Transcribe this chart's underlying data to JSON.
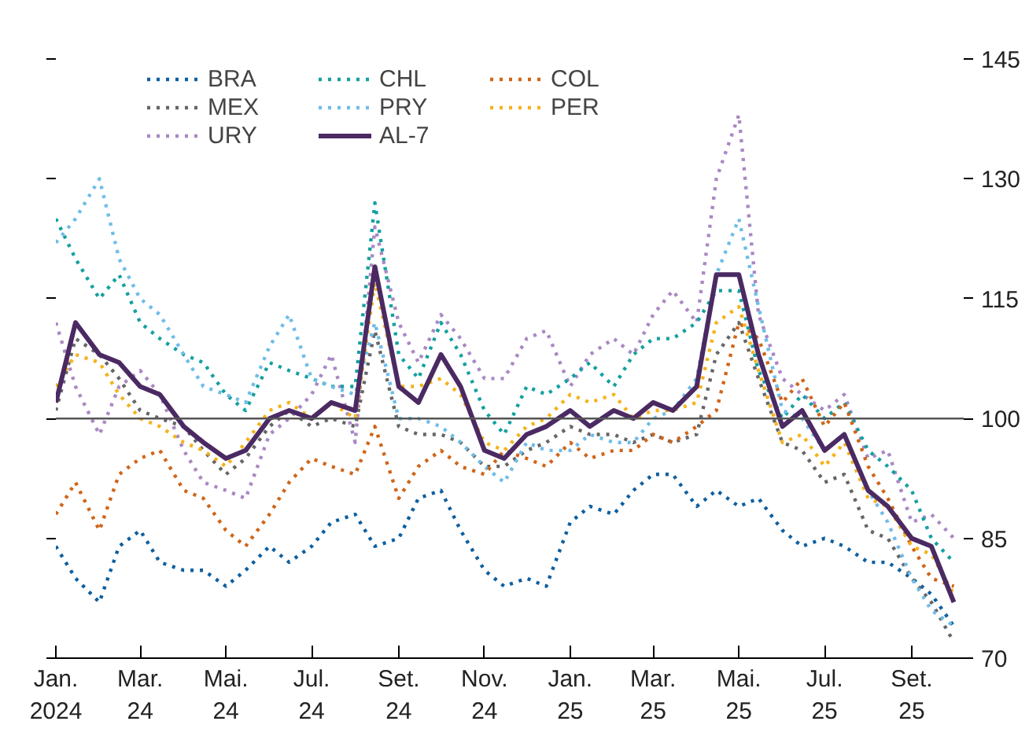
{
  "chart_data": {
    "type": "line",
    "x": [
      "2024-01-01",
      "2024-01-15",
      "2024-02-01",
      "2024-02-15",
      "2024-03-01",
      "2024-03-15",
      "2024-04-01",
      "2024-04-15",
      "2024-05-01",
      "2024-05-15",
      "2024-06-01",
      "2024-06-15",
      "2024-07-01",
      "2024-07-15",
      "2024-08-01",
      "2024-08-15",
      "2024-09-01",
      "2024-09-15",
      "2024-10-01",
      "2024-10-15",
      "2024-11-01",
      "2024-11-15",
      "2024-12-01",
      "2024-12-15",
      "2025-01-01",
      "2025-01-15",
      "2025-02-01",
      "2025-02-15",
      "2025-03-01",
      "2025-03-15",
      "2025-04-01",
      "2025-04-15",
      "2025-05-01",
      "2025-05-15",
      "2025-06-01",
      "2025-06-15",
      "2025-07-01",
      "2025-07-15",
      "2025-08-01",
      "2025-08-15",
      "2025-09-01",
      "2025-09-15",
      "2025-10-01"
    ],
    "series": [
      {
        "name": "BRA",
        "color": "#0d5fa0",
        "line_style": "dotted",
        "values": [
          84,
          80,
          77,
          84,
          86,
          82,
          81,
          81,
          79,
          81,
          84,
          82,
          84,
          87,
          88,
          84,
          85,
          90,
          91,
          86,
          81,
          79,
          80,
          79,
          87,
          89,
          88,
          91,
          93,
          93,
          89,
          91,
          89,
          90,
          86,
          84,
          85,
          84,
          82,
          82,
          80,
          78,
          74
        ]
      },
      {
        "name": "MEX",
        "color": "#666666",
        "line_style": "dotted",
        "values": [
          101,
          110,
          108,
          105,
          101,
          100,
          99,
          96,
          93,
          95,
          99,
          101,
          99,
          100,
          99,
          111,
          99,
          98,
          98,
          97,
          94,
          94,
          96,
          97,
          99,
          98,
          98,
          97,
          98,
          97,
          98,
          108,
          112,
          105,
          97,
          96,
          92,
          93,
          86,
          85,
          80,
          77,
          72
        ]
      },
      {
        "name": "URY",
        "color": "#a988c4",
        "line_style": "dotted",
        "values": [
          112,
          104,
          98,
          104,
          106,
          103,
          96,
          92,
          91,
          90,
          98,
          100,
          103,
          108,
          97,
          124,
          112,
          107,
          113,
          110,
          105,
          105,
          110,
          111,
          104,
          108,
          110,
          108,
          113,
          116,
          112,
          130,
          138,
          113,
          105,
          103,
          101,
          103,
          95,
          96,
          87,
          88,
          85
        ]
      },
      {
        "name": "CHL",
        "color": "#14a0a0",
        "line_style": "dotted",
        "values": [
          125,
          120,
          115,
          118,
          112,
          110,
          108,
          107,
          103,
          101,
          107,
          106,
          105,
          104,
          104,
          127,
          108,
          105,
          112,
          108,
          101,
          98,
          104,
          103,
          105,
          107,
          104,
          108,
          110,
          110,
          112,
          116,
          116,
          106,
          100,
          103,
          100,
          102,
          96,
          94,
          91,
          85,
          82
        ]
      },
      {
        "name": "PRY",
        "color": "#6fbde8",
        "line_style": "dotted",
        "values": [
          122,
          125,
          130,
          120,
          115,
          113,
          108,
          104,
          103,
          102,
          109,
          113,
          105,
          104,
          103,
          112,
          100,
          100,
          99,
          97,
          94,
          92,
          97,
          96,
          96,
          98,
          97,
          97,
          100,
          101,
          105,
          118,
          125,
          114,
          101,
          100,
          96,
          98,
          91,
          87,
          80,
          76,
          74
        ]
      },
      {
        "name": "AL-7",
        "color": "#4b2a63",
        "line_style": "solid",
        "values": [
          102,
          112,
          108,
          107,
          104,
          103,
          99,
          97,
          95,
          96,
          100,
          101,
          100,
          102,
          101,
          119,
          104,
          102,
          108,
          104,
          96,
          95,
          98,
          99,
          101,
          99,
          101,
          100,
          102,
          101,
          104,
          118,
          118,
          108,
          99,
          101,
          96,
          98,
          91,
          89,
          85,
          84,
          77
        ]
      },
      {
        "name": "COL",
        "color": "#d06519",
        "line_style": "dotted",
        "values": [
          88,
          92,
          86,
          93,
          95,
          96,
          91,
          90,
          86,
          84,
          88,
          92,
          95,
          94,
          93,
          99,
          90,
          94,
          96,
          94,
          93,
          96,
          95,
          94,
          97,
          95,
          96,
          96,
          98,
          97,
          99,
          101,
          112,
          110,
          102,
          105,
          99,
          102,
          94,
          90,
          84,
          80,
          79
        ]
      },
      {
        "name": "PER",
        "color": "#f5b21b",
        "line_style": "dotted",
        "values": [
          104,
          108,
          107,
          103,
          100,
          99,
          97,
          96,
          94,
          97,
          101,
          102,
          100,
          102,
          100,
          117,
          104,
          104,
          105,
          103,
          97,
          96,
          99,
          100,
          103,
          102,
          103,
          100,
          101,
          101,
          102,
          112,
          114,
          106,
          97,
          98,
          94,
          97,
          90,
          89,
          84,
          83,
          78
        ]
      }
    ],
    "xlim": [
      "2024-01-01",
      "2025-10-08"
    ],
    "xticks": [
      {
        "value": "2024-01-01",
        "label": "Jan.\n2024"
      },
      {
        "value": "2024-03-01",
        "label": "Mar.\n24"
      },
      {
        "value": "2024-05-01",
        "label": "Mai.\n24"
      },
      {
        "value": "2024-07-01",
        "label": "Jul.\n24"
      },
      {
        "value": "2024-09-01",
        "label": "Set.\n24"
      },
      {
        "value": "2024-11-01",
        "label": "Nov.\n24"
      },
      {
        "value": "2025-01-01",
        "label": "Jan.\n25"
      },
      {
        "value": "2025-03-01",
        "label": "Mar.\n25"
      },
      {
        "value": "2025-05-01",
        "label": "Mai.\n25"
      },
      {
        "value": "2025-07-01",
        "label": "Jul.\n25"
      },
      {
        "value": "2025-09-01",
        "label": "Set.\n25"
      }
    ],
    "ylim": [
      70,
      145
    ],
    "yticks": [
      70,
      85,
      100,
      115,
      130,
      145
    ],
    "ref_lines": [
      {
        "axis": "y",
        "value": 100,
        "color": "#555555"
      }
    ],
    "grid": false,
    "legend": "top left"
  }
}
